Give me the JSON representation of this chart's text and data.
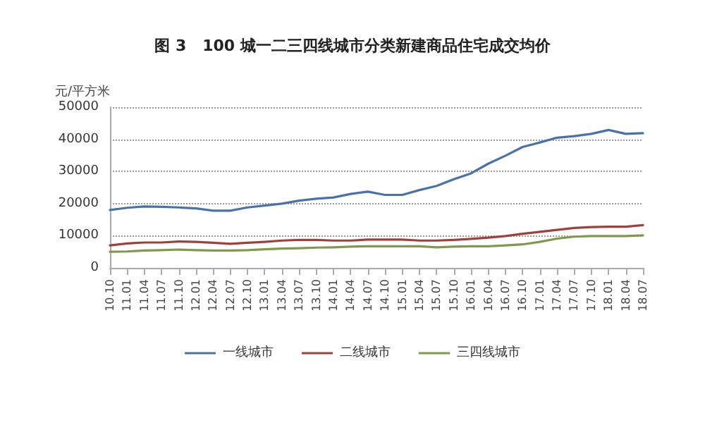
{
  "chart_data": {
    "type": "line",
    "title": "图 3   100 城一二三四线城市分类新建商品住宅成交均价",
    "ylabel": "元/平方米",
    "categories": [
      "10.10",
      "11.01",
      "11.04",
      "11.07",
      "11.10",
      "12.01",
      "12.04",
      "12.07",
      "12.10",
      "13.01",
      "13.04",
      "13.07",
      "13.10",
      "14.01",
      "14.04",
      "14.07",
      "14.10",
      "15.01",
      "15.04",
      "15.07",
      "15.10",
      "16.01",
      "16.04",
      "16.07",
      "16.10",
      "17.01",
      "17.04",
      "17.07",
      "17.10",
      "18.01",
      "18.04",
      "18.07"
    ],
    "series": [
      {
        "name": "一线城市",
        "color": "#4a72a8",
        "values": [
          18000,
          18700,
          19100,
          19000,
          18800,
          18500,
          17800,
          17800,
          18800,
          19400,
          20000,
          20900,
          21500,
          21900,
          23000,
          23700,
          22700,
          22700,
          24200,
          25500,
          27600,
          29400,
          32400,
          34900,
          37600,
          39000,
          40500,
          41000,
          41700,
          42900,
          41700,
          41900
        ]
      },
      {
        "name": "二线城市",
        "color": "#a0403c",
        "values": [
          7000,
          7600,
          7900,
          7900,
          8200,
          8100,
          7800,
          7500,
          7800,
          8100,
          8500,
          8700,
          8700,
          8500,
          8500,
          8800,
          8800,
          8800,
          8500,
          8500,
          8700,
          9000,
          9400,
          9900,
          10600,
          11200,
          11800,
          12400,
          12700,
          12800,
          12800,
          13300
        ]
      },
      {
        "name": "三四线城市",
        "color": "#7e9a4a",
        "values": [
          5000,
          5100,
          5400,
          5500,
          5700,
          5500,
          5400,
          5400,
          5500,
          5800,
          6000,
          6100,
          6300,
          6400,
          6600,
          6700,
          6700,
          6700,
          6700,
          6400,
          6600,
          6700,
          6700,
          7000,
          7300,
          8100,
          9100,
          9700,
          9900,
          9900,
          9900,
          10100
        ]
      }
    ],
    "ylim": [
      0,
      50000
    ],
    "yticks": [
      0,
      10000,
      20000,
      30000,
      40000,
      50000
    ],
    "grid": "y",
    "legend": "bottom",
    "marker": "none",
    "line_style": "solid"
  }
}
